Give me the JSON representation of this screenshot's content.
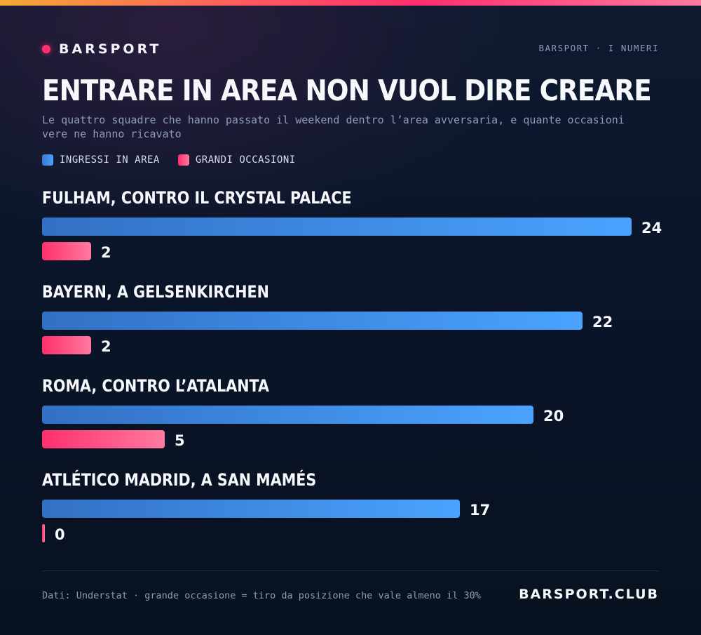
{
  "header": {
    "brand": "BARSPORT",
    "kicker": "BARSPORT · I NUMERI"
  },
  "colors": {
    "accent": "#ff2f6d",
    "series_ingressi": "#4aa3ff",
    "series_occasioni": "#ff2f6d"
  },
  "chart_data": {
    "type": "bar",
    "orientation": "horizontal",
    "title": "ENTRARE IN AREA NON VUOL DIRE CREARE",
    "subtitle": "Le quattro squadre che hanno passato il weekend dentro l’area avversaria, e quante occasioni vere ne hanno ricavato",
    "categories": [
      "FULHAM, CONTRO IL CRYSTAL PALACE",
      "BAYERN, A GELSENKIRCHEN",
      "ROMA, CONTRO L’ATALANTA",
      "ATLÉTICO MADRID, A SAN MAMÉS"
    ],
    "series": [
      {
        "name": "INGRESSI IN AREA",
        "values": [
          24,
          22,
          20,
          17
        ],
        "color": "#4aa3ff"
      },
      {
        "name": "GRANDI OCCASIONI",
        "values": [
          2,
          2,
          5,
          0
        ],
        "color": "#ff2f6d"
      }
    ],
    "xlim": [
      0,
      24
    ],
    "grid": false,
    "legend": "top-left"
  },
  "footer": {
    "note": "Dati: Understat · grande occasione = tiro da posizione che vale almeno il 30%",
    "brand": "BARSPORT.CLUB"
  }
}
